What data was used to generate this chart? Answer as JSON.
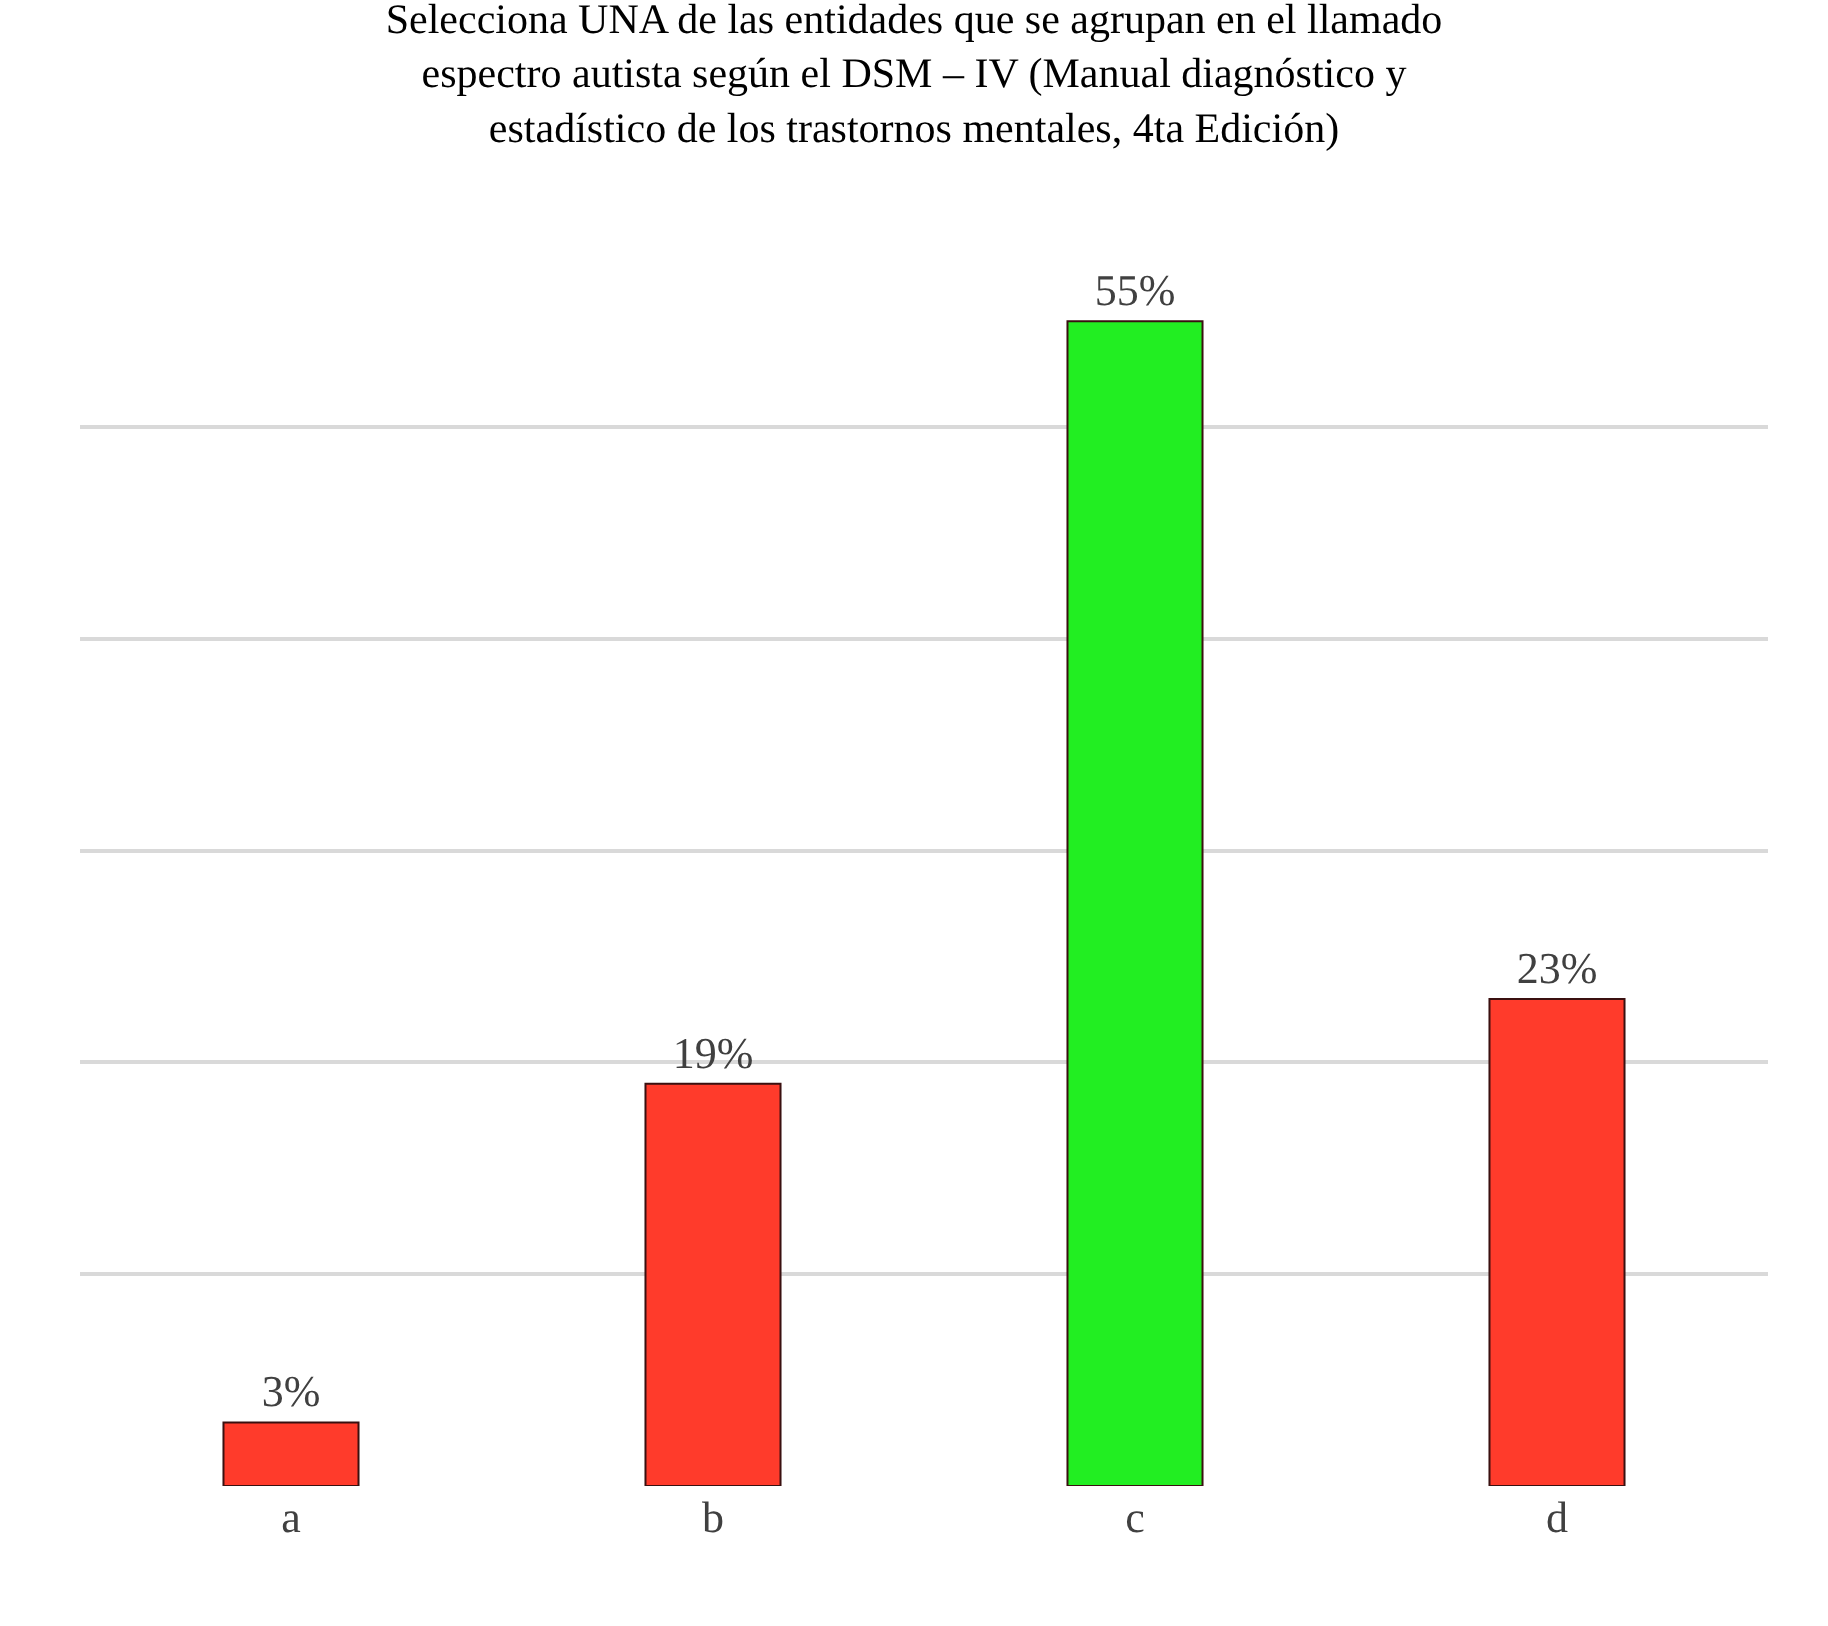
{
  "chart_data": {
    "type": "bar",
    "title": "Selecciona UNA de las entidades que se agrupan en el llamado espectro autista según el DSM – IV (Manual diagnóstico y estadístico de los trastornos mentales, 4ta Edición)",
    "categories": [
      "a",
      "b",
      "c",
      "d"
    ],
    "values": [
      3,
      19,
      55,
      23
    ],
    "colors": [
      "#ff3b2b",
      "#ff3b2b",
      "#22ee22",
      "#ff3b2b"
    ],
    "value_labels": [
      "3%",
      "19%",
      "55%",
      "23%"
    ],
    "grid": "y",
    "tick_labels": "x"
  }
}
